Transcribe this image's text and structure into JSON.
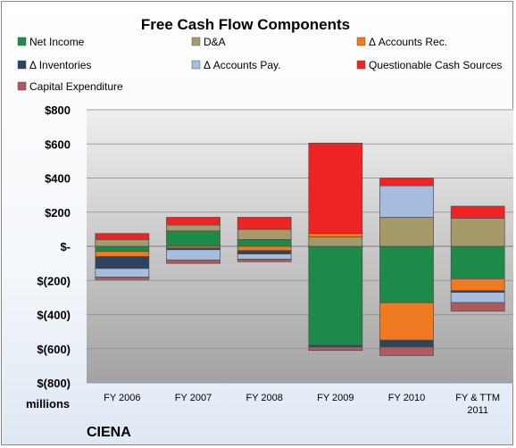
{
  "chart_data": {
    "type": "bar",
    "stacked": true,
    "title": "Free Cash Flow Components",
    "ylabel": "millions",
    "footer": "CIENA",
    "categories": [
      [
        "FY 2006"
      ],
      [
        "FY 2007"
      ],
      [
        "FY 2008"
      ],
      [
        "FY 2009"
      ],
      [
        "FY 2010"
      ],
      [
        "FY & TTM",
        "2011"
      ]
    ],
    "ylim": [
      -800,
      800
    ],
    "yticks": [
      {
        "value": 800,
        "label": "$800"
      },
      {
        "value": 600,
        "label": "$600"
      },
      {
        "value": 400,
        "label": "$400"
      },
      {
        "value": 200,
        "label": "$200"
      },
      {
        "value": 0,
        "label": "$-"
      },
      {
        "value": -200,
        "label": "$(200)"
      },
      {
        "value": -400,
        "label": "$(400)"
      },
      {
        "value": -600,
        "label": "$(600)"
      },
      {
        "value": -800,
        "label": "$(800)"
      }
    ],
    "legend_position": "top",
    "grid": true,
    "series": [
      {
        "name": "Net Income",
        "color": "#1e8a49",
        "values": [
          -30,
          90,
          40,
          -580,
          -330,
          -190
        ]
      },
      {
        "name": "D&A",
        "color": "#a69a6b",
        "values": [
          40,
          35,
          60,
          55,
          170,
          165
        ]
      },
      {
        "name": "Δ Accounts Rec.",
        "color": "#ee7b21",
        "values": [
          -30,
          -10,
          -25,
          20,
          -220,
          -70
        ]
      },
      {
        "name": "Δ Inventories",
        "color": "#2b4463",
        "values": [
          -70,
          -10,
          -20,
          -10,
          -40,
          -10
        ]
      },
      {
        "name": "Δ Accounts Pay.",
        "color": "#a6bde0",
        "values": [
          -50,
          -60,
          -30,
          0,
          185,
          -60
        ]
      },
      {
        "name": "Questionable Cash Sources",
        "color": "#ee2424",
        "values": [
          35,
          45,
          70,
          530,
          45,
          70
        ]
      },
      {
        "name": "Capital Expenditure",
        "color": "#b05a60",
        "values": [
          -15,
          -20,
          -15,
          -20,
          -50,
          -50
        ]
      }
    ]
  }
}
